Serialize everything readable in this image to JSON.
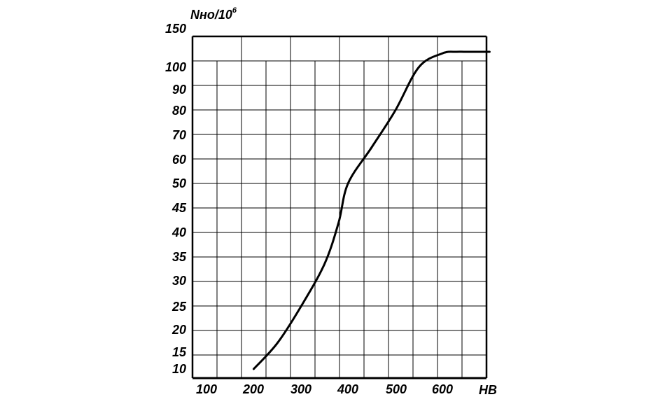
{
  "chart_data": {
    "type": "line",
    "title": "",
    "ylabel_main": "Nно/10",
    "ylabel_exp": "6",
    "xlabel": "HB",
    "x_ticks": [
      "100",
      "200",
      "300",
      "400",
      "500",
      "600"
    ],
    "y_ticks": [
      "150",
      "100",
      "90",
      "80",
      "70",
      "60",
      "50",
      "45",
      "40",
      "35",
      "30",
      "25",
      "20",
      "15",
      "10"
    ],
    "grid": true,
    "series": [
      {
        "points": [
          {
            "hb": 200,
            "n": 10
          },
          {
            "hb": 250,
            "n": 17
          },
          {
            "hb": 300,
            "n": 25
          },
          {
            "hb": 350,
            "n": 33.5
          },
          {
            "hb": 380,
            "n": 42
          },
          {
            "hb": 400,
            "n": 50
          },
          {
            "hb": 450,
            "n": 65
          },
          {
            "hb": 500,
            "n": 80
          },
          {
            "hb": 550,
            "n": 100
          },
          {
            "hb": 600,
            "n": 118
          },
          {
            "hb": 630,
            "n": 120
          },
          {
            "hb": 650,
            "n": 120
          },
          {
            "hb": 700,
            "n": 120
          }
        ]
      }
    ]
  }
}
